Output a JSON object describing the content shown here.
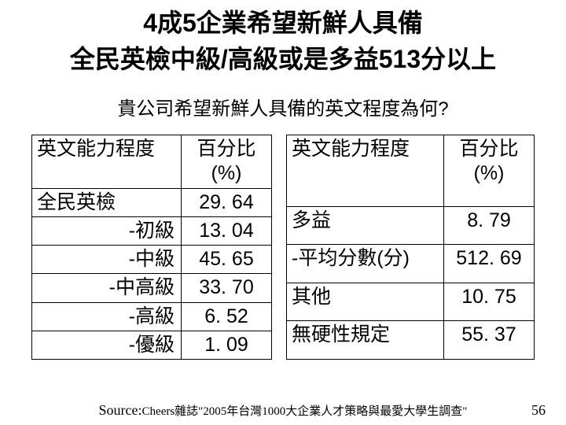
{
  "title": {
    "line1": "4成5企業希望新鮮人具備",
    "line2": "全民英檢中級/高級或是多益513分以上"
  },
  "subtitle": "貴公司希望新鮮人具備的英文程度為何?",
  "leftTable": {
    "header": {
      "c1": "英文能力程度",
      "c2": "百分比(%)"
    },
    "rows": [
      {
        "label": "全民英檢",
        "align": "left",
        "value": "29. 64"
      },
      {
        "label": "-初級",
        "align": "right",
        "value": "13. 04"
      },
      {
        "label": "-中級",
        "align": "right",
        "value": "45. 65"
      },
      {
        "label": "-中高級",
        "align": "right",
        "value": "33. 70"
      },
      {
        "label": "-高級",
        "align": "right",
        "value": "6. 52"
      },
      {
        "label": "-優級",
        "align": "right",
        "value": "1. 09"
      }
    ]
  },
  "rightTable": {
    "header": {
      "c1": "英文能力程度",
      "c2": "百分比(%)"
    },
    "rows": [
      {
        "label": "多益",
        "value": "8. 79"
      },
      {
        "label": "-平均分數(分)",
        "value": "512. 69"
      },
      {
        "label": "其他",
        "value": "10. 75"
      },
      {
        "label": "無硬性規定",
        "value": "55. 37"
      }
    ]
  },
  "source": {
    "prefix": "Source:",
    "text": "Cheers雜誌\"2005年台灣1000大企業人才策略與最愛大學生調查\""
  },
  "pageNumber": "56",
  "style": {
    "text_color": "#000000",
    "background_color": "#ffffff",
    "border_color": "#000000",
    "title_fontsize_pt": 24,
    "subtitle_fontsize_pt": 18,
    "table_fontsize_pt": 19,
    "source_fontsize_pt": 13
  }
}
